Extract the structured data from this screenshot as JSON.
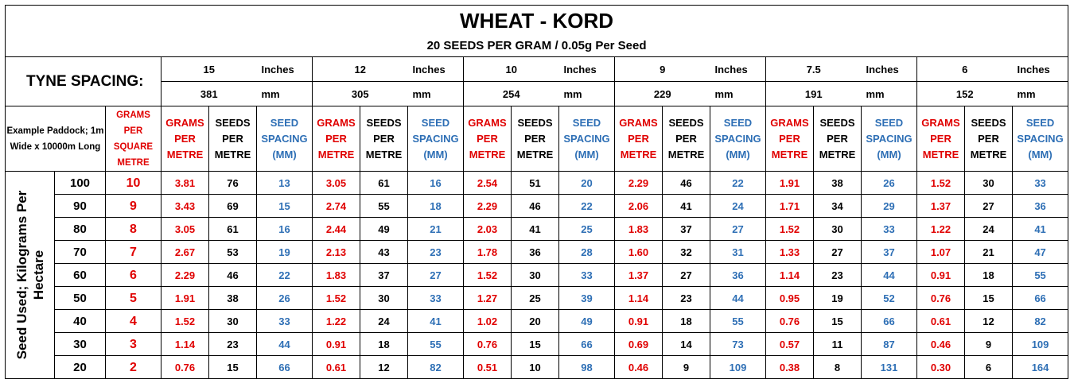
{
  "title": "WHEAT - KORD",
  "subtitle": "20 SEEDS PER GRAM / 0.05g Per Seed",
  "tyne_label": "TYNE SPACING:",
  "example_label": "Example Paddock; 1m Wide x 10000m Long",
  "gsm_header": "GRAMS PER SQUARE METRE",
  "side_label_line1": "Seed Used; Kilograms Per",
  "side_label_line2": "Hectare",
  "col_headers": {
    "grams": "GRAMS PER METRE",
    "seeds": "SEEDS PER METRE",
    "spacing": "SEED SPACING (MM)"
  },
  "spacings": [
    {
      "inches": "15",
      "inch_unit": "Inches",
      "mm": "381",
      "mm_unit": "mm"
    },
    {
      "inches": "12",
      "inch_unit": "Inches",
      "mm": "305",
      "mm_unit": "mm"
    },
    {
      "inches": "10",
      "inch_unit": "Inches",
      "mm": "254",
      "mm_unit": "mm"
    },
    {
      "inches": "9",
      "inch_unit": "Inches",
      "mm": "229",
      "mm_unit": "mm"
    },
    {
      "inches": "7.5",
      "inch_unit": "Inches",
      "mm": "191",
      "mm_unit": "mm"
    },
    {
      "inches": "6",
      "inch_unit": "Inches",
      "mm": "152",
      "mm_unit": "mm"
    }
  ],
  "rows": [
    {
      "kg": "100",
      "gsm": "10",
      "values": [
        [
          "3.81",
          "76",
          "13"
        ],
        [
          "3.05",
          "61",
          "16"
        ],
        [
          "2.54",
          "51",
          "20"
        ],
        [
          "2.29",
          "46",
          "22"
        ],
        [
          "1.91",
          "38",
          "26"
        ],
        [
          "1.52",
          "30",
          "33"
        ]
      ]
    },
    {
      "kg": "90",
      "gsm": "9",
      "values": [
        [
          "3.43",
          "69",
          "15"
        ],
        [
          "2.74",
          "55",
          "18"
        ],
        [
          "2.29",
          "46",
          "22"
        ],
        [
          "2.06",
          "41",
          "24"
        ],
        [
          "1.71",
          "34",
          "29"
        ],
        [
          "1.37",
          "27",
          "36"
        ]
      ]
    },
    {
      "kg": "80",
      "gsm": "8",
      "values": [
        [
          "3.05",
          "61",
          "16"
        ],
        [
          "2.44",
          "49",
          "21"
        ],
        [
          "2.03",
          "41",
          "25"
        ],
        [
          "1.83",
          "37",
          "27"
        ],
        [
          "1.52",
          "30",
          "33"
        ],
        [
          "1.22",
          "24",
          "41"
        ]
      ]
    },
    {
      "kg": "70",
      "gsm": "7",
      "values": [
        [
          "2.67",
          "53",
          "19"
        ],
        [
          "2.13",
          "43",
          "23"
        ],
        [
          "1.78",
          "36",
          "28"
        ],
        [
          "1.60",
          "32",
          "31"
        ],
        [
          "1.33",
          "27",
          "37"
        ],
        [
          "1.07",
          "21",
          "47"
        ]
      ]
    },
    {
      "kg": "60",
      "gsm": "6",
      "values": [
        [
          "2.29",
          "46",
          "22"
        ],
        [
          "1.83",
          "37",
          "27"
        ],
        [
          "1.52",
          "30",
          "33"
        ],
        [
          "1.37",
          "27",
          "36"
        ],
        [
          "1.14",
          "23",
          "44"
        ],
        [
          "0.91",
          "18",
          "55"
        ]
      ]
    },
    {
      "kg": "50",
      "gsm": "5",
      "values": [
        [
          "1.91",
          "38",
          "26"
        ],
        [
          "1.52",
          "30",
          "33"
        ],
        [
          "1.27",
          "25",
          "39"
        ],
        [
          "1.14",
          "23",
          "44"
        ],
        [
          "0.95",
          "19",
          "52"
        ],
        [
          "0.76",
          "15",
          "66"
        ]
      ]
    },
    {
      "kg": "40",
      "gsm": "4",
      "values": [
        [
          "1.52",
          "30",
          "33"
        ],
        [
          "1.22",
          "24",
          "41"
        ],
        [
          "1.02",
          "20",
          "49"
        ],
        [
          "0.91",
          "18",
          "55"
        ],
        [
          "0.76",
          "15",
          "66"
        ],
        [
          "0.61",
          "12",
          "82"
        ]
      ]
    },
    {
      "kg": "30",
      "gsm": "3",
      "values": [
        [
          "1.14",
          "23",
          "44"
        ],
        [
          "0.91",
          "18",
          "55"
        ],
        [
          "0.76",
          "15",
          "66"
        ],
        [
          "0.69",
          "14",
          "73"
        ],
        [
          "0.57",
          "11",
          "87"
        ],
        [
          "0.46",
          "9",
          "109"
        ]
      ]
    },
    {
      "kg": "20",
      "gsm": "2",
      "values": [
        [
          "0.76",
          "15",
          "66"
        ],
        [
          "0.61",
          "12",
          "82"
        ],
        [
          "0.51",
          "10",
          "98"
        ],
        [
          "0.46",
          "9",
          "109"
        ],
        [
          "0.38",
          "8",
          "131"
        ],
        [
          "0.30",
          "6",
          "164"
        ]
      ]
    }
  ],
  "colors": {
    "grams": "#e00000",
    "seeds": "#000000",
    "spacing": "#2e6fb5"
  }
}
